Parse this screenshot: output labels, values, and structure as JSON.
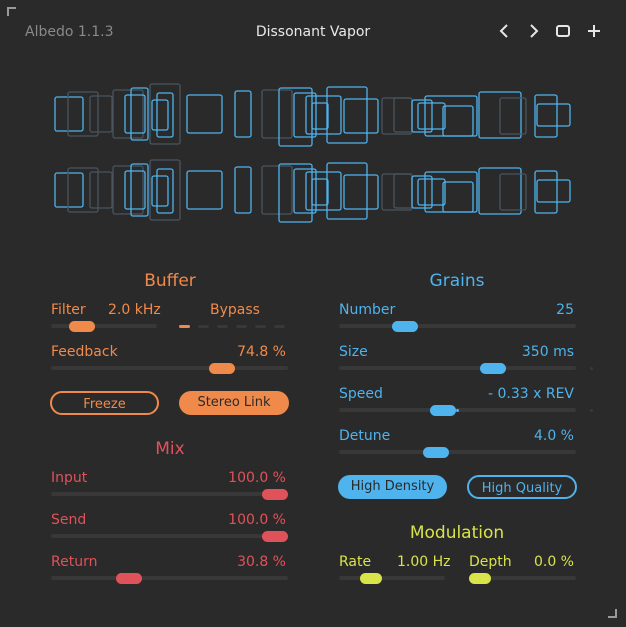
{
  "header": {
    "version": "Albedo 1.1.3",
    "preset_name": "Dissonant Vapor",
    "icons": [
      "chevron-left-icon",
      "chevron-right-icon",
      "square-icon",
      "plus-icon"
    ],
    "prev_glyph": "<",
    "next_glyph": ">",
    "add_glyph": "+"
  },
  "colors": {
    "background": "#2a2a2a",
    "buffer_orange": "#f08a4b",
    "mix_red": "#e0525a",
    "grains_blue": "#4fb3ee",
    "modulation_yellow": "#d9e34a",
    "track": "#383838"
  },
  "buffer": {
    "title": "Buffer",
    "filter_label": "Filter",
    "filter_value": "2.0 kHz",
    "filter_level": 0.22,
    "bypass_label": "Bypass",
    "bypass_level": 0.0,
    "feedback_label": "Feedback",
    "feedback_value": "74.8 %",
    "feedback_level": 0.748,
    "freeze_label": "Freeze",
    "freeze_active": false,
    "stereo_link_label": "Stereo Link",
    "stereo_link_active": true
  },
  "mix": {
    "title": "Mix",
    "input_label": "Input",
    "input_value": "100.0 %",
    "input_level": 1.0,
    "send_label": "Send",
    "send_value": "100.0 %",
    "send_level": 1.0,
    "return_label": "Return",
    "return_value": "30.8 %",
    "return_level": 0.308
  },
  "grains": {
    "title": "Grains",
    "number_label": "Number",
    "number_value": "25",
    "number_level": 0.25,
    "size_label": "Size",
    "size_value": "350 ms",
    "size_level": 0.67,
    "speed_label": "Speed",
    "speed_value": "- 0.33 x REV",
    "speed_level": 0.43,
    "detune_label": "Detune",
    "detune_value": "4.0 %",
    "detune_level": 0.4,
    "high_density_label": "High Density",
    "high_density_active": true,
    "high_quality_label": "High Quality",
    "high_quality_active": false
  },
  "modulation": {
    "title": "Modulation",
    "rate_label": "Rate",
    "rate_value": "1.00 Hz",
    "rate_level": 0.25,
    "depth_label": "Depth",
    "depth_value": "0.0 %",
    "depth_level": 0.0
  }
}
